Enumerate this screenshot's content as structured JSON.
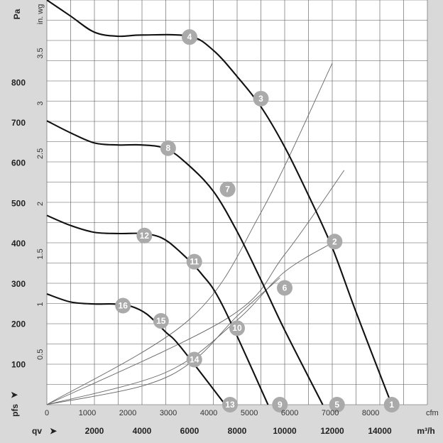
{
  "chart_data": {
    "type": "line",
    "title": "",
    "units": {
      "pressure_pa": "Pa",
      "pressure_inwg": "in. wg",
      "flow_cfm": "cfm",
      "flow_m3h": "m³/h",
      "y_symbol": "pfs",
      "x_symbol": "qv"
    },
    "axes": {
      "x_m3h": {
        "range": [
          0,
          16000
        ],
        "ticks": [
          2000,
          4000,
          6000,
          8000,
          10000,
          12000,
          14000
        ]
      },
      "x_cfm": {
        "range": [
          0,
          9400
        ],
        "ticks": [
          0,
          1000,
          2000,
          3000,
          4000,
          5000,
          6000,
          7000,
          8000
        ]
      },
      "y_pa": {
        "range": [
          0,
          1005
        ],
        "ticks": [
          100,
          200,
          300,
          400,
          500,
          600,
          700,
          800
        ]
      },
      "y_inwg": {
        "range": [
          0,
          4.03
        ],
        "ticks": [
          "0.5",
          "1",
          "1.5",
          "2",
          "2.5",
          "3",
          "3.5"
        ]
      }
    },
    "grid": true,
    "fan_curves": [
      {
        "name": "",
        "x": [
          0,
          1000,
          2000,
          3000,
          4000,
          6000,
          7000,
          8000,
          9000,
          10000,
          11000,
          12000,
          13000,
          14500
        ],
        "y": [
          1005,
          965,
          925,
          915,
          918,
          915,
          880,
          815,
          740,
          640,
          520,
          390,
          230,
          0
        ]
      },
      {
        "name": "",
        "x": [
          0,
          1000,
          2000,
          3000,
          4000,
          5000,
          5900,
          7000,
          8000,
          9000,
          10000,
          11600
        ],
        "y": [
          705,
          675,
          650,
          645,
          645,
          636,
          598,
          530,
          430,
          310,
          185,
          0
        ]
      },
      {
        "name": "",
        "x": [
          0,
          1000,
          2000,
          3000,
          4000,
          4800,
          5500,
          6500,
          7400,
          9300
        ],
        "y": [
          470,
          445,
          428,
          425,
          425,
          415,
          385,
          325,
          245,
          0
        ]
      },
      {
        "name": "",
        "x": [
          0,
          1000,
          2000,
          2800,
          3500,
          4200,
          5000,
          5600,
          7500
        ],
        "y": [
          275,
          255,
          250,
          250,
          245,
          225,
          180,
          145,
          0
        ]
      }
    ],
    "system_curves": [
      {
        "x": [
          0,
          6000,
          9000,
          12000
        ],
        "y": [
          0,
          212,
          477,
          848
        ]
      },
      {
        "x": [
          0,
          7600,
          10000,
          12500
        ],
        "y": [
          0,
          215,
          373,
          582
        ]
      },
      {
        "x": [
          0,
          5000,
          8000,
          10000,
          12100
        ],
        "y": [
          0,
          80,
          210,
          330,
          405
        ]
      },
      {
        "x": [
          0,
          4100,
          6200,
          8000,
          9800
        ],
        "y": [
          0,
          48,
          111,
          220,
          315
        ]
      }
    ],
    "operating_points": [
      {
        "label": "1",
        "x": 14500,
        "y": 0
      },
      {
        "label": "2",
        "x": 12100,
        "y": 405
      },
      {
        "label": "3",
        "x": 9000,
        "y": 760
      },
      {
        "label": "4",
        "x": 6000,
        "y": 913
      },
      {
        "label": "5",
        "x": 12200,
        "y": 0
      },
      {
        "label": "6",
        "x": 10000,
        "y": 290
      },
      {
        "label": "7",
        "x": 7600,
        "y": 535
      },
      {
        "label": "8",
        "x": 5100,
        "y": 637
      },
      {
        "label": "9",
        "x": 9800,
        "y": 0
      },
      {
        "label": "10",
        "x": 8000,
        "y": 190
      },
      {
        "label": "11",
        "x": 6200,
        "y": 355
      },
      {
        "label": "12",
        "x": 4100,
        "y": 420
      },
      {
        "label": "13",
        "x": 7700,
        "y": 0
      },
      {
        "label": "14",
        "x": 6200,
        "y": 112
      },
      {
        "label": "15",
        "x": 4800,
        "y": 208
      },
      {
        "label": "16",
        "x": 3200,
        "y": 246
      }
    ],
    "colors": {
      "curve": "#111111",
      "grid": "#555555",
      "system": "#666666",
      "marker": "#aaaaaa",
      "background_plot": "#ffffff",
      "background_frame": "#d9d9d9"
    }
  }
}
